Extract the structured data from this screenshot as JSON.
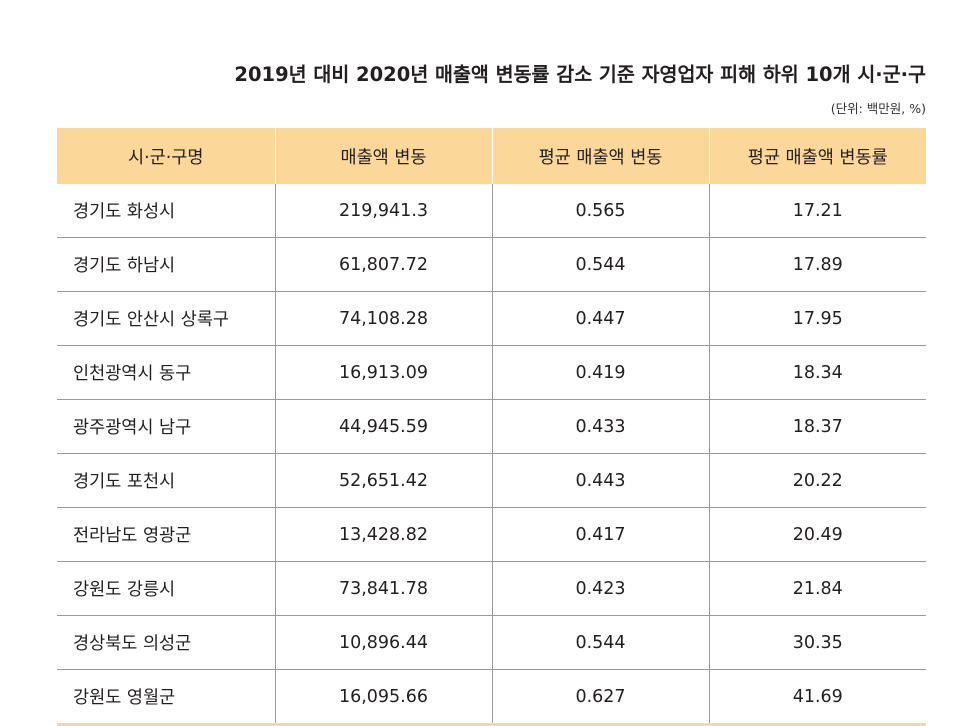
{
  "title": "2019년 대비 2020년 매출액 변동률 감소 기준 자영업자 피해 하위 10개 시·군·구",
  "unit": "(단위: 백만원, %)",
  "table": {
    "headers": [
      "시·군·구명",
      "매출액 변동",
      "평균 매출액 변동",
      "평균 매출액 변동률"
    ],
    "rows": [
      [
        "경기도 화성시",
        "219,941.3",
        "0.565",
        "17.21"
      ],
      [
        "경기도 하남시",
        "61,807.72",
        "0.544",
        "17.89"
      ],
      [
        "경기도 안산시 상록구",
        "74,108.28",
        "0.447",
        "17.95"
      ],
      [
        "인천광역시 동구",
        "16,913.09",
        "0.419",
        "18.34"
      ],
      [
        "광주광역시 남구",
        "44,945.59",
        "0.433",
        "18.37"
      ],
      [
        "경기도 포천시",
        "52,651.42",
        "0.443",
        "20.22"
      ],
      [
        "전라남도 영광군",
        "13,428.82",
        "0.417",
        "20.49"
      ],
      [
        "강원도 강릉시",
        "73,841.78",
        "0.423",
        "21.84"
      ],
      [
        "경상북도 의성군",
        "10,896.44",
        "0.544",
        "30.35"
      ],
      [
        "강원도 영월군",
        "16,095.66",
        "0.627",
        "41.69"
      ]
    ]
  }
}
